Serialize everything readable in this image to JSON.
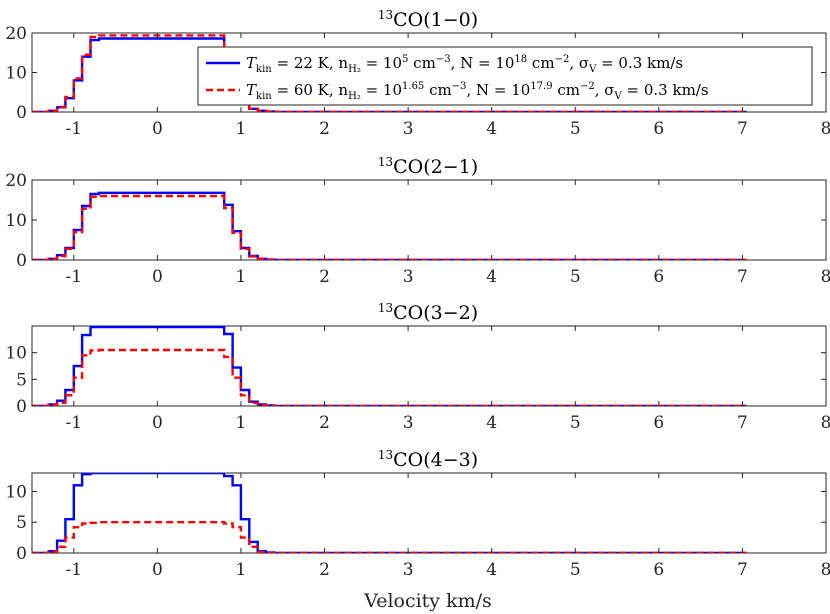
{
  "chart_data": {
    "type": "line",
    "xlabel": "Velocity km/s",
    "xlim": [
      -1.5,
      8
    ],
    "xticks": [
      -1,
      0,
      1,
      2,
      3,
      4,
      5,
      6,
      7,
      8
    ],
    "xtick_labels": [
      "-1",
      "0",
      "1",
      "2",
      "3",
      "4",
      "5",
      "6",
      "7",
      "8"
    ],
    "x": [
      -1.5,
      -1.4,
      -1.3,
      -1.2,
      -1.1,
      -1.0,
      -0.9,
      -0.8,
      -0.7,
      0.7,
      0.8,
      0.9,
      1.0,
      1.1,
      1.2,
      1.3,
      1.4,
      1.5,
      7.05
    ],
    "legend": {
      "location": "top-right",
      "entries": [
        {
          "series": 0,
          "prefix": "T",
          "sub": "kin",
          "text": " = 22 K,  n",
          "sub2": "H₂",
          "text2": " = 10",
          "sup1": "5",
          "text3": " cm",
          "sup2": "−3",
          "text4": ",  N = 10",
          "sup3": "18",
          "text5": " cm",
          "sup4": "−2",
          "text6": ",  σ",
          "sub3": "V",
          "text7": " = 0.3 km/s"
        },
        {
          "series": 1,
          "prefix": "T",
          "sub": "kin",
          "text": " = 60 K,  n",
          "sub2": "H₂",
          "text2": " = 10",
          "sup1": "1.65",
          "text3": " cm",
          "sup2": "−3",
          "text4": ",  N = 10",
          "sup3": "17.9",
          "text5": " cm",
          "sup4": "−2",
          "text6": ",  σ",
          "sub3": "V",
          "text7": " = 0.3 km/s"
        }
      ]
    },
    "panels": [
      {
        "title_sup": "13",
        "title": "CO(1−0)",
        "ylim": [
          0,
          20
        ],
        "yticks": [
          0,
          10,
          20
        ],
        "ytick_labels": [
          "0",
          "10",
          "20"
        ],
        "series": [
          {
            "name": "Tkin = 22 K",
            "color": "#0000ff",
            "style": "solid",
            "values": [
              0,
              0,
              0.3,
              1.2,
              3.5,
              8,
              14,
              18.2,
              18.6,
              18.6,
              13,
              6.5,
              2.5,
              0.8,
              0.3,
              0.1,
              0,
              0,
              0
            ]
          },
          {
            "name": "Tkin = 60 K",
            "color": "#ff0000",
            "style": "dashed",
            "values": [
              0,
              0,
              0.3,
              1.3,
              3.8,
              8.5,
              14.5,
              19,
              19.4,
              19.4,
              13.5,
              6.8,
              2.6,
              0.8,
              0.3,
              0.1,
              0,
              0,
              0
            ]
          }
        ]
      },
      {
        "title_sup": "13",
        "title": "CO(2−1)",
        "ylim": [
          0,
          20
        ],
        "yticks": [
          0,
          10,
          20
        ],
        "ytick_labels": [
          "0",
          "10",
          "20"
        ],
        "series": [
          {
            "name": "Tkin = 22 K",
            "color": "#0000ff",
            "style": "solid",
            "values": [
              0,
              0,
              0.3,
              1.2,
              3,
              7.5,
              13.5,
              16.5,
              16.8,
              16.8,
              13.8,
              7.2,
              3,
              1,
              0.3,
              0.1,
              0,
              0,
              0
            ]
          },
          {
            "name": "Tkin = 60 K",
            "color": "#ff0000",
            "style": "dashed",
            "values": [
              0,
              0,
              0.3,
              1,
              2.8,
              7,
              12.8,
              15.8,
              16,
              16,
              13,
              6.8,
              2.8,
              0.9,
              0.3,
              0.1,
              0,
              0,
              0
            ]
          }
        ]
      },
      {
        "title_sup": "13",
        "title": "CO(3−2)",
        "ylim": [
          0,
          15
        ],
        "yticks": [
          0,
          5,
          10
        ],
        "ytick_labels": [
          "0",
          "5",
          "10"
        ],
        "series": [
          {
            "name": "Tkin = 22 K",
            "color": "#0000ff",
            "style": "solid",
            "values": [
              0,
              0,
              0.3,
              1,
              3,
              7.5,
              13.3,
              14.8,
              14.8,
              14.8,
              13.5,
              7.2,
              3,
              0.8,
              0.3,
              0.1,
              0,
              0,
              0
            ]
          },
          {
            "name": "Tkin = 60 K",
            "color": "#ff0000",
            "style": "dashed",
            "values": [
              0,
              0,
              0.2,
              0.6,
              2,
              5.3,
              9.5,
              10.4,
              10.5,
              10.5,
              9.2,
              5.3,
              2,
              0.6,
              0.2,
              0.05,
              0,
              0,
              0
            ]
          }
        ]
      },
      {
        "title_sup": "13",
        "title": "CO(4−3)",
        "ylim": [
          0,
          13
        ],
        "yticks": [
          0,
          5,
          10
        ],
        "ytick_labels": [
          "0",
          "5",
          "10"
        ],
        "series": [
          {
            "name": "Tkin = 22 K",
            "color": "#0000ff",
            "style": "solid",
            "values": [
              0,
              0,
              0.3,
              2,
              5.5,
              11,
              12.8,
              13,
              13,
              13,
              12.5,
              11,
              5.5,
              1.8,
              0.3,
              0.1,
              0,
              0,
              0
            ]
          },
          {
            "name": "Tkin = 60 K",
            "color": "#ff0000",
            "style": "dashed",
            "values": [
              0,
              0,
              0.2,
              1,
              2.5,
              4.2,
              4.8,
              4.9,
              5,
              5,
              4.8,
              4.2,
              2.5,
              1,
              0.2,
              0.05,
              0,
              0,
              0
            ]
          }
        ]
      }
    ]
  }
}
